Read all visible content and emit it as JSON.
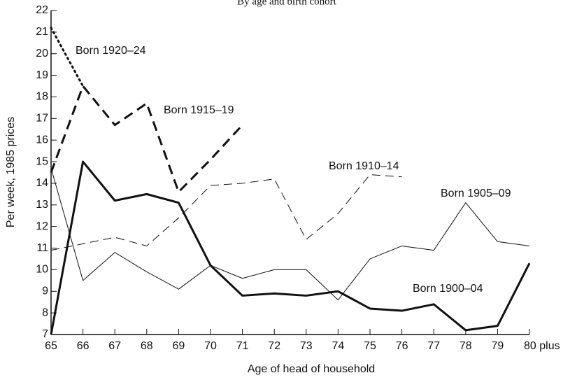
{
  "chart_data": {
    "type": "line",
    "title": "By age and birth cohort",
    "x_label": "Age of head of household",
    "y_label": "Per week, 1985 prices",
    "categories": [
      "65",
      "66",
      "67",
      "68",
      "69",
      "70",
      "71",
      "72",
      "73",
      "74",
      "75",
      "76",
      "77",
      "78",
      "79",
      "80 plus"
    ],
    "ylim": [
      7,
      22
    ],
    "yticks": [
      7,
      8,
      9,
      10,
      11,
      12,
      13,
      14,
      15,
      16,
      17,
      18,
      19,
      20,
      21,
      22
    ],
    "series": [
      {
        "name": "Born 1900–04",
        "color": "#111111",
        "line_style": "solid",
        "line_width": 3,
        "values": [
          7.0,
          15.0,
          13.2,
          13.5,
          13.1,
          10.2,
          8.8,
          8.9,
          8.8,
          9.0,
          8.2,
          8.1,
          8.4,
          7.2,
          7.4,
          10.3
        ]
      },
      {
        "name": "Born 1905–09",
        "color": "#111111",
        "line_style": "solid",
        "line_width": 1,
        "values": [
          14.7,
          9.5,
          10.8,
          9.9,
          9.1,
          10.2,
          9.6,
          10.0,
          10.0,
          8.6,
          10.5,
          11.1,
          10.9,
          13.1,
          11.3,
          11.1
        ]
      },
      {
        "name": "Born 1910–14",
        "color": "#111111",
        "line_style": "dashed",
        "line_width": 1,
        "values": [
          10.9,
          11.2,
          11.5,
          11.1,
          12.4,
          13.9,
          14.0,
          14.2,
          11.4,
          12.6,
          14.4,
          14.3,
          null,
          null,
          null,
          null
        ]
      },
      {
        "name": "Born 1915–19",
        "color": "#111111",
        "line_style": "dashed",
        "line_width": 3,
        "values": [
          14.5,
          18.5,
          16.7,
          17.7,
          13.6,
          15.1,
          16.7,
          null,
          null,
          null,
          null,
          null,
          null,
          null,
          null,
          null
        ]
      },
      {
        "name": "Born 1920–24",
        "color": "#111111",
        "line_style": "dotted",
        "line_width": 3,
        "values": [
          21.2,
          18.5,
          null,
          null,
          null,
          null,
          null,
          null,
          null,
          null,
          null,
          null,
          null,
          null,
          null,
          null
        ]
      }
    ]
  }
}
